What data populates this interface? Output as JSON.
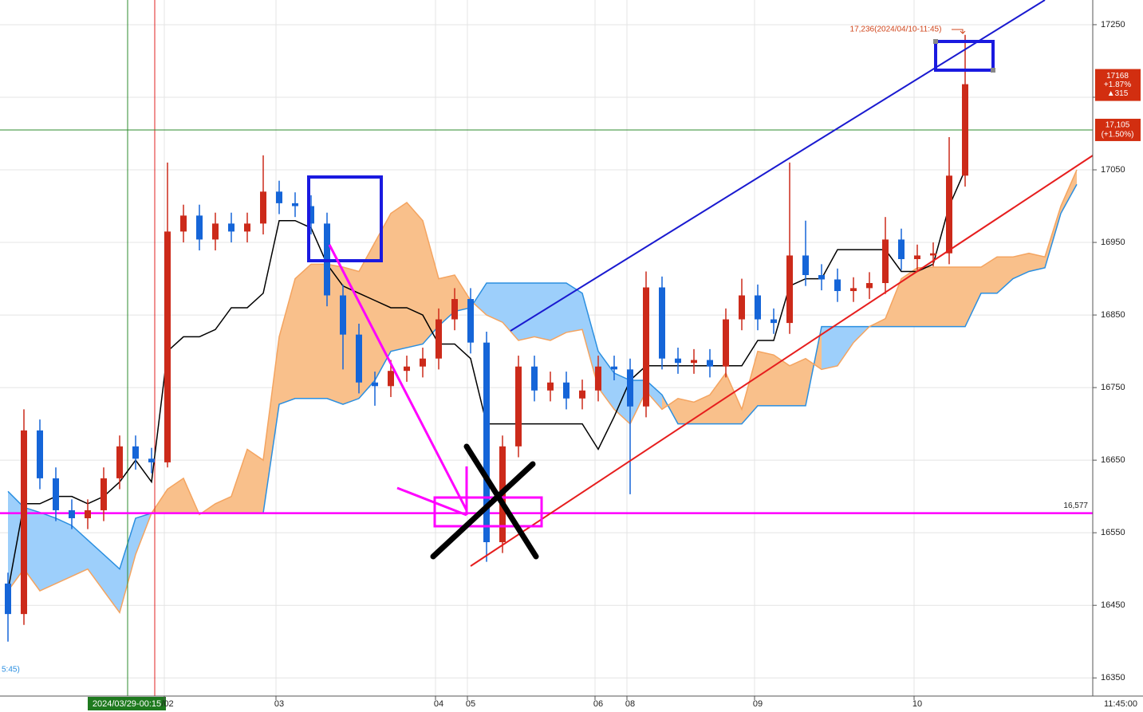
{
  "chart_data": {
    "type": "candlestick",
    "categories": [
      null,
      null,
      null,
      null,
      null,
      null,
      null,
      null,
      null,
      null,
      "/02",
      null,
      null,
      null,
      null,
      null,
      null,
      "03",
      null,
      null,
      null,
      null,
      null,
      null,
      null,
      null,
      null,
      "04",
      null,
      "05",
      null,
      null,
      null,
      null,
      null,
      null,
      null,
      "06",
      null,
      "08",
      null,
      null,
      null,
      null,
      null,
      null,
      null,
      "09",
      null,
      null,
      null,
      null,
      null,
      null,
      null,
      null,
      null,
      "10",
      null,
      null,
      null
    ],
    "open": [
      16480,
      16438,
      16691,
      16625,
      16581,
      16570,
      16581,
      16625,
      16669,
      16652,
      16647,
      16965,
      16987,
      16954,
      16976,
      16965,
      16976,
      17020,
      17004,
      17000,
      16976,
      16877,
      16823,
      16757,
      16752,
      16773,
      16779,
      16790,
      16844,
      16872,
      16812,
      16537,
      16669,
      16779,
      16746,
      16757,
      16735,
      16746,
      16779,
      16775,
      16724,
      16888,
      16790,
      16784,
      16788,
      16779,
      16844,
      16877,
      16844,
      16839,
      16932,
      16905,
      16899,
      16883,
      16887,
      16894,
      16954,
      16927,
      16932,
      16935,
      17042
    ],
    "high": [
      16495,
      16720,
      16706,
      16640,
      16596,
      16596,
      16640,
      16684,
      16684,
      16667,
      17060,
      17002,
      17002,
      16991,
      16991,
      16991,
      17070,
      17035,
      17019,
      17015,
      16991,
      16892,
      16838,
      16772,
      16788,
      16794,
      16805,
      16859,
      16887,
      16887,
      16827,
      16684,
      16794,
      16794,
      16772,
      16772,
      16761,
      16794,
      16794,
      16790,
      16910,
      16903,
      16805,
      16803,
      16803,
      16859,
      16900,
      16892,
      16859,
      17060,
      16980,
      16920,
      16914,
      16902,
      16909,
      16985,
      16969,
      16947,
      16950,
      17095,
      17236
    ],
    "low": [
      16400,
      16423,
      16610,
      16566,
      16555,
      16555,
      16566,
      16610,
      16637,
      16632,
      16640,
      16950,
      16939,
      16939,
      16950,
      16950,
      16961,
      16989,
      16985,
      16961,
      16862,
      16775,
      16742,
      16725,
      16737,
      16758,
      16764,
      16775,
      16829,
      16797,
      16510,
      16522,
      16654,
      16731,
      16731,
      16720,
      16720,
      16731,
      16760,
      16603,
      16709,
      16775,
      16769,
      16769,
      16764,
      16764,
      16829,
      16829,
      16824,
      16824,
      16890,
      16884,
      16868,
      16868,
      16872,
      16879,
      16912,
      16912,
      16917,
      16920,
      17027
    ],
    "close": [
      16438,
      16691,
      16625,
      16581,
      16570,
      16581,
      16625,
      16669,
      16652,
      16647,
      16965,
      16987,
      16954,
      16976,
      16965,
      16976,
      17020,
      17004,
      17000,
      16976,
      16877,
      16823,
      16757,
      16752,
      16773,
      16779,
      16790,
      16844,
      16872,
      16812,
      16537,
      16669,
      16779,
      16746,
      16757,
      16735,
      16746,
      16779,
      16775,
      16724,
      16888,
      16790,
      16784,
      16788,
      16779,
      16844,
      16877,
      16844,
      16839,
      16932,
      16905,
      16899,
      16883,
      16887,
      16894,
      16954,
      16927,
      16932,
      16935,
      17042,
      17168
    ],
    "up_color": "#cc2a1a",
    "down_color": "#1565d8",
    "base_line": {
      "color": "#000000",
      "values": [
        16470,
        16590,
        16590,
        16600,
        16600,
        16590,
        16600,
        16620,
        16650,
        16620,
        16800,
        16820,
        16820,
        16830,
        16860,
        16860,
        16880,
        16980,
        16980,
        16970,
        16920,
        16890,
        16880,
        16870,
        16860,
        16860,
        16850,
        16810,
        16810,
        16790,
        16700,
        16700,
        16700,
        16700,
        16700,
        16700,
        16700,
        16665,
        16710,
        16760,
        16780,
        16780,
        16780,
        16780,
        16780,
        16780,
        16780,
        16815,
        16815,
        16890,
        16900,
        16900,
        16940,
        16940,
        16940,
        16940,
        16910,
        16910,
        16920,
        17000,
        17050
      ]
    },
    "cloud": {
      "span_a_color": "#2b8fe0",
      "span_b_color": "#f4a460",
      "fill_a_color": "#9dcffb",
      "fill_b_color": "#f9c08b",
      "span_a": [
        16607,
        16585,
        16578,
        16570,
        16560,
        16540,
        16520,
        16500,
        16570,
        16577,
        16577,
        16577,
        16577,
        16577,
        16577,
        16577,
        16577,
        16727,
        16735,
        16735,
        16735,
        16727,
        16735,
        16760,
        16800,
        16805,
        16810,
        16835,
        16855,
        16860,
        16894,
        16894,
        16894,
        16894,
        16894,
        16894,
        16880,
        16800,
        16770,
        16760,
        16760,
        16740,
        16700,
        16700,
        16700,
        16700,
        16700,
        16725,
        16725,
        16725,
        16725,
        16834,
        16834,
        16834,
        16834,
        16834,
        16834,
        16834,
        16834,
        16834,
        16834,
        16880,
        16880,
        16900,
        16910,
        16915,
        16990,
        17030
      ],
      "span_b": [
        16470,
        16500,
        16470,
        16480,
        16490,
        16500,
        16470,
        16440,
        16520,
        16577,
        16610,
        16625,
        16575,
        16590,
        16600,
        16665,
        16650,
        16820,
        16900,
        16920,
        16920,
        16916,
        16910,
        16950,
        16990,
        17005,
        16980,
        16900,
        16905,
        16870,
        16850,
        16840,
        16815,
        16820,
        16815,
        16826,
        16830,
        16750,
        16720,
        16700,
        16745,
        16720,
        16735,
        16730,
        16740,
        16770,
        16720,
        16800,
        16795,
        16780,
        16790,
        16775,
        16780,
        16812,
        16834,
        16845,
        16900,
        16915,
        16916,
        16916,
        16916,
        16916,
        16930,
        16930,
        16935,
        16930,
        17000,
        17050
      ]
    },
    "ylim": [
      16325,
      17284
    ],
    "yticks": [
      16350,
      16450,
      16550,
      16650,
      16750,
      16850,
      16950,
      17050,
      17150,
      17250
    ],
    "grid": true,
    "reference_lines": [
      {
        "value": 16577,
        "label": "16,577",
        "color": "#ff00ff"
      },
      {
        "value": 17105,
        "label": "17,105",
        "sublabel": "(+1.50%)",
        "color": "#2e8b2e"
      }
    ],
    "last_price": {
      "value": 17168,
      "change_pct": "+1.87%",
      "change": "▲315"
    },
    "high_label": "17,236(2024/04/10-11:45)",
    "cursor_label": "2024/03/29-00:15",
    "last_time_label": "11:45:00",
    "left_cut_label": "5:45)"
  }
}
